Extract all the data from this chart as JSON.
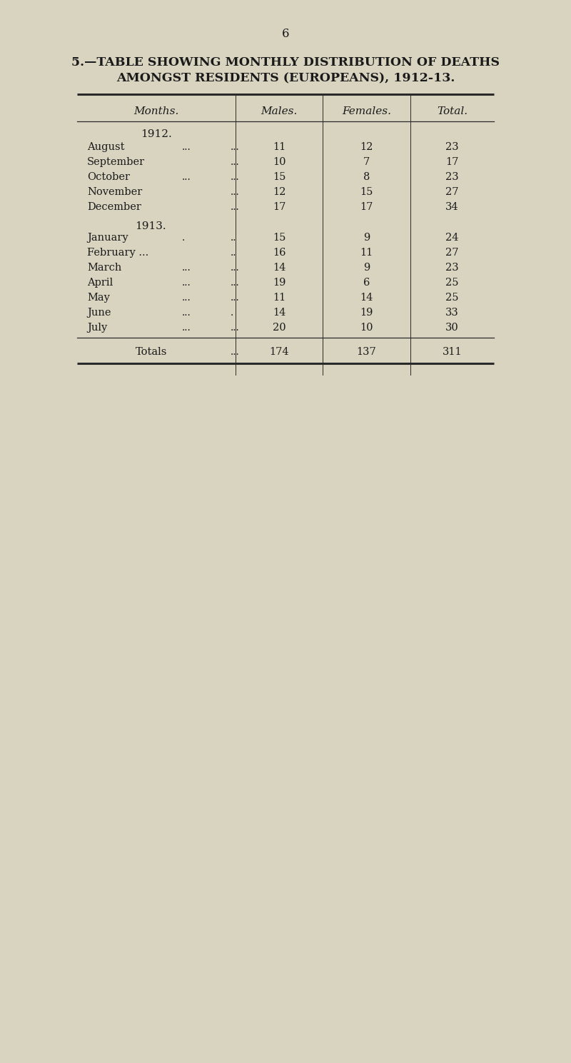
{
  "page_number": "6",
  "title_line1": "5.—TABLE SHOWING MONTHLY DISTRIBUTION OF DEATHS",
  "title_line2": "AMONGST RESIDENTS (EUROPEANS), 1912-13.",
  "col_headers": [
    "Months.",
    "Males.",
    "Females.",
    "Total."
  ],
  "year_1912_label": "1912.",
  "year_1913_label": "1913.",
  "months_1912": [
    "August",
    "September",
    "October",
    "November",
    "December"
  ],
  "dots1_1912": [
    "...",
    "",
    "...",
    "",
    ""
  ],
  "dots2_1912": [
    "...",
    "...",
    "...",
    "...",
    "..."
  ],
  "months_1913": [
    "January",
    "February ...",
    "March",
    "April",
    "May",
    "June",
    "July"
  ],
  "dots1_1913": [
    ".",
    "",
    "...",
    "...",
    "...",
    "...",
    "..."
  ],
  "dots2_1913": [
    "..",
    "..",
    "...",
    "...",
    "...",
    ".",
    "..."
  ],
  "males_1912": [
    "11",
    "10",
    "15",
    "12",
    "17"
  ],
  "females_1912": [
    "12",
    "7",
    "8",
    "15",
    "17"
  ],
  "totals_1912": [
    "23",
    "17",
    "23",
    "27",
    "34"
  ],
  "males_1913": [
    "15",
    "16",
    "14",
    "19",
    "11",
    "14",
    "20"
  ],
  "females_1913": [
    "9",
    "11",
    "9",
    "6",
    "14",
    "19",
    "10"
  ],
  "totals_1913": [
    "24",
    "27",
    "23",
    "25",
    "25",
    "33",
    "30"
  ],
  "totals_label": "Totals",
  "totals_dots": "...",
  "totals_values": [
    "174",
    "137",
    "311"
  ],
  "bg_color": "#d9d4c0",
  "text_color": "#1a1a1a",
  "line_color": "#2a2a2a"
}
